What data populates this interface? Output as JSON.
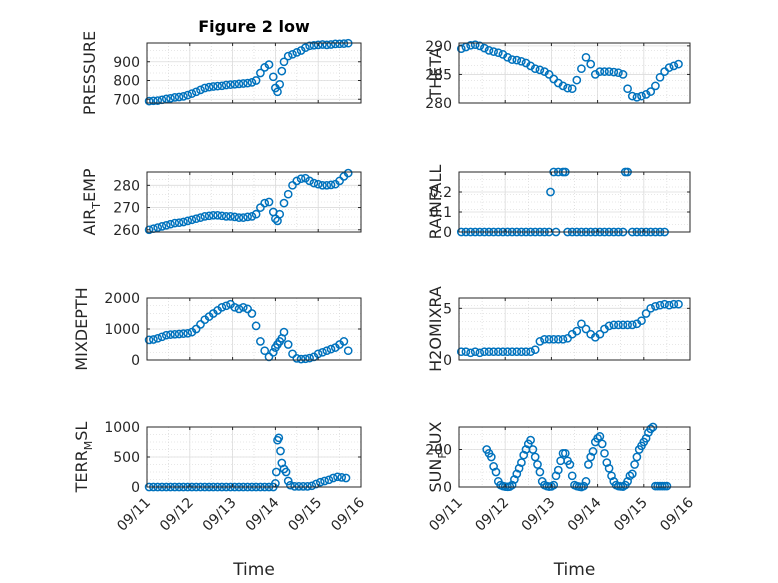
{
  "marker_color": "#0072BD",
  "chart_data": [
    {
      "type": "scatter",
      "title": "Figure 2 low",
      "ylabel": "PRESSURE",
      "ylabel_sub": "",
      "xlim": [
        0,
        5
      ],
      "ylim": [
        680,
        1000
      ],
      "yticks": [
        700,
        800,
        900
      ],
      "ytick_labels": [
        "700",
        "800",
        "900"
      ],
      "xticks": [
        0,
        1,
        2,
        3,
        4,
        5
      ],
      "xtick_labels": [],
      "grid": true,
      "series": [
        {
          "x": [
            0.05,
            0.15,
            0.25,
            0.35,
            0.45,
            0.55,
            0.65,
            0.75,
            0.85,
            0.95,
            1.05,
            1.15,
            1.25,
            1.35,
            1.45,
            1.55,
            1.65,
            1.75,
            1.85,
            1.95,
            2.05,
            2.15,
            2.25,
            2.35,
            2.45,
            2.55,
            2.65,
            2.75,
            2.85,
            2.95,
            3.0,
            3.05,
            3.1,
            3.15,
            3.2,
            3.3,
            3.4,
            3.5,
            3.6,
            3.7,
            3.8,
            3.9,
            4.0,
            4.1,
            4.2,
            4.3,
            4.4,
            4.5,
            4.6,
            4.7
          ],
          "y": [
            690,
            692,
            693,
            697,
            702,
            705,
            710,
            712,
            715,
            722,
            730,
            740,
            750,
            760,
            765,
            768,
            770,
            772,
            776,
            778,
            780,
            782,
            784,
            786,
            790,
            800,
            840,
            870,
            885,
            820,
            760,
            740,
            780,
            850,
            900,
            930,
            940,
            950,
            960,
            975,
            985,
            988,
            990,
            992,
            990,
            992,
            995,
            996,
            997,
            999
          ]
        }
      ]
    },
    {
      "type": "scatter",
      "title": "",
      "ylabel": "THETA",
      "ylabel_sub": "",
      "xlim": [
        0,
        5
      ],
      "ylim": [
        280,
        290.5
      ],
      "yticks": [
        280,
        285,
        290
      ],
      "ytick_labels": [
        "280",
        "285",
        "290"
      ],
      "xticks": [
        0,
        1,
        2,
        3,
        4,
        5
      ],
      "xtick_labels": [],
      "grid": true,
      "series": [
        {
          "x": [
            0.05,
            0.15,
            0.25,
            0.35,
            0.45,
            0.55,
            0.65,
            0.75,
            0.85,
            0.95,
            1.05,
            1.15,
            1.25,
            1.35,
            1.45,
            1.55,
            1.65,
            1.75,
            1.85,
            1.95,
            2.05,
            2.15,
            2.25,
            2.35,
            2.45,
            2.55,
            2.65,
            2.75,
            2.85,
            2.95,
            3.05,
            3.15,
            3.25,
            3.35,
            3.45,
            3.55,
            3.65,
            3.75,
            3.85,
            3.95,
            4.05,
            4.15,
            4.25,
            4.35,
            4.45,
            4.55,
            4.65,
            4.75
          ],
          "y": [
            289.5,
            289.8,
            290.1,
            290.2,
            290,
            289.6,
            289.2,
            289.0,
            288.8,
            288.5,
            288.0,
            287.6,
            287.5,
            287.3,
            287.0,
            286.5,
            286.0,
            285.8,
            285.5,
            285.0,
            284.2,
            283.5,
            283.0,
            282.6,
            282.5,
            284.0,
            286.0,
            288.0,
            286.8,
            285.0,
            285.5,
            285.5,
            285.5,
            285.4,
            285.3,
            285.0,
            282.5,
            281.2,
            281.0,
            281.2,
            281.5,
            282.0,
            283.0,
            284.5,
            285.5,
            286.2,
            286.5,
            286.8
          ]
        }
      ]
    },
    {
      "type": "scatter",
      "title": "",
      "ylabel": "AIR",
      "ylabel_sub": "T",
      "ylabel_rest": "EMP",
      "xlim": [
        0,
        5
      ],
      "ylim": [
        259,
        286
      ],
      "yticks": [
        260,
        270,
        280
      ],
      "ytick_labels": [
        "260",
        "270",
        "280"
      ],
      "xticks": [
        0,
        1,
        2,
        3,
        4,
        5
      ],
      "xtick_labels": [],
      "grid": true,
      "series": [
        {
          "x": [
            0.05,
            0.15,
            0.25,
            0.35,
            0.45,
            0.55,
            0.65,
            0.75,
            0.85,
            0.95,
            1.05,
            1.15,
            1.25,
            1.35,
            1.45,
            1.55,
            1.65,
            1.75,
            1.85,
            1.95,
            2.05,
            2.15,
            2.25,
            2.35,
            2.45,
            2.55,
            2.65,
            2.75,
            2.85,
            2.95,
            3.0,
            3.05,
            3.1,
            3.2,
            3.3,
            3.4,
            3.5,
            3.6,
            3.7,
            3.8,
            3.9,
            4.0,
            4.1,
            4.2,
            4.3,
            4.4,
            4.5,
            4.6,
            4.7
          ],
          "y": [
            260,
            260.5,
            261,
            261.5,
            262,
            262.5,
            263,
            263.2,
            263.5,
            264,
            264.5,
            265,
            265.5,
            266,
            266.3,
            266.5,
            266.5,
            266.3,
            266,
            266,
            265.8,
            265.5,
            265.5,
            265.8,
            266,
            267,
            270,
            272,
            272.5,
            268,
            265,
            264,
            267,
            272,
            276,
            280,
            282,
            283,
            283.2,
            282,
            281,
            280.5,
            280,
            280,
            280.2,
            280.5,
            282,
            284,
            285.5
          ]
        }
      ]
    },
    {
      "type": "scatter",
      "title": "",
      "ylabel": "RAINFALL",
      "ylabel_sub": "",
      "xlim": [
        0,
        5
      ],
      "ylim": [
        0,
        0.3
      ],
      "yticks": [
        0,
        0.1,
        0.2
      ],
      "ytick_labels": [
        "0",
        "0.1",
        "0.2"
      ],
      "xticks": [
        0,
        1,
        2,
        3,
        4,
        5
      ],
      "xtick_labels": [],
      "grid": true,
      "series": [
        {
          "x": [
            0.05,
            0.15,
            0.25,
            0.35,
            0.45,
            0.55,
            0.65,
            0.75,
            0.85,
            0.95,
            1.05,
            1.15,
            1.25,
            1.35,
            1.45,
            1.55,
            1.65,
            1.75,
            1.85,
            1.95,
            1.98,
            2.05,
            2.1,
            2.15,
            2.25,
            2.3,
            2.35,
            2.45,
            2.55,
            2.65,
            2.75,
            2.85,
            2.95,
            3.05,
            3.15,
            3.25,
            3.35,
            3.45,
            3.55,
            3.6,
            3.65,
            3.75,
            3.85,
            3.95,
            4.05,
            4.15,
            4.25,
            4.35,
            4.45
          ],
          "y": [
            0,
            0,
            0,
            0,
            0,
            0,
            0,
            0,
            0,
            0,
            0,
            0,
            0,
            0,
            0,
            0,
            0,
            0,
            0,
            0,
            0.2,
            0.3,
            0,
            0.3,
            0.3,
            0.3,
            0,
            0,
            0,
            0,
            0,
            0,
            0,
            0,
            0,
            0,
            0,
            0,
            0,
            0.3,
            0.3,
            0,
            0,
            0,
            0,
            0,
            0,
            0,
            0
          ]
        }
      ]
    },
    {
      "type": "scatter",
      "title": "",
      "ylabel": "MIXDEPTH",
      "ylabel_sub": "",
      "xlim": [
        0,
        5
      ],
      "ylim": [
        0,
        2000
      ],
      "yticks": [
        0,
        1000,
        2000
      ],
      "ytick_labels": [
        "0",
        "1000",
        "2000"
      ],
      "xticks": [
        0,
        1,
        2,
        3,
        4,
        5
      ],
      "xtick_labels": [],
      "grid": true,
      "series": [
        {
          "x": [
            0.05,
            0.15,
            0.25,
            0.35,
            0.45,
            0.55,
            0.65,
            0.75,
            0.85,
            0.95,
            1.05,
            1.15,
            1.25,
            1.35,
            1.45,
            1.55,
            1.65,
            1.75,
            1.85,
            1.95,
            2.05,
            2.15,
            2.25,
            2.35,
            2.45,
            2.55,
            2.65,
            2.75,
            2.85,
            2.95,
            3.0,
            3.05,
            3.1,
            3.15,
            3.2,
            3.3,
            3.4,
            3.5,
            3.6,
            3.7,
            3.8,
            3.9,
            4.0,
            4.1,
            4.2,
            4.3,
            4.4,
            4.5,
            4.6,
            4.7
          ],
          "y": [
            650,
            660,
            700,
            750,
            800,
            820,
            830,
            840,
            850,
            860,
            900,
            1000,
            1150,
            1300,
            1400,
            1500,
            1600,
            1700,
            1750,
            1800,
            1700,
            1650,
            1700,
            1650,
            1500,
            1100,
            600,
            300,
            100,
            250,
            400,
            500,
            600,
            700,
            900,
            500,
            200,
            50,
            30,
            40,
            60,
            100,
            200,
            250,
            300,
            350,
            400,
            500,
            600,
            300
          ]
        }
      ]
    },
    {
      "type": "scatter",
      "title": "",
      "ylabel": "H2OMIXRA",
      "ylabel_sub": "",
      "xlim": [
        0,
        5
      ],
      "ylim": [
        0,
        6
      ],
      "yticks": [
        0,
        5
      ],
      "ytick_labels": [
        "0",
        "5"
      ],
      "xticks": [
        0,
        1,
        2,
        3,
        4,
        5
      ],
      "xtick_labels": [],
      "grid": true,
      "series": [
        {
          "x": [
            0.05,
            0.15,
            0.25,
            0.35,
            0.45,
            0.55,
            0.65,
            0.75,
            0.85,
            0.95,
            1.05,
            1.15,
            1.25,
            1.35,
            1.45,
            1.55,
            1.65,
            1.75,
            1.85,
            1.95,
            2.05,
            2.15,
            2.25,
            2.35,
            2.45,
            2.55,
            2.65,
            2.75,
            2.85,
            2.95,
            3.05,
            3.15,
            3.25,
            3.35,
            3.45,
            3.55,
            3.65,
            3.75,
            3.85,
            3.95,
            4.05,
            4.15,
            4.25,
            4.35,
            4.45,
            4.55,
            4.65,
            4.75
          ],
          "y": [
            0.8,
            0.8,
            0.7,
            0.8,
            0.7,
            0.8,
            0.8,
            0.8,
            0.8,
            0.8,
            0.8,
            0.8,
            0.8,
            0.8,
            0.8,
            0.8,
            1.0,
            1.8,
            2.0,
            2.0,
            2.0,
            2.0,
            2.0,
            2.1,
            2.5,
            2.8,
            3.5,
            3.0,
            2.5,
            2.2,
            2.5,
            3.0,
            3.3,
            3.4,
            3.4,
            3.4,
            3.4,
            3.4,
            3.5,
            3.8,
            4.5,
            5.0,
            5.2,
            5.3,
            5.4,
            5.3,
            5.4,
            5.4
          ]
        }
      ]
    },
    {
      "type": "scatter",
      "title": "",
      "ylabel": "TERR",
      "ylabel_sub": "M",
      "ylabel_rest": "SL",
      "xlim": [
        0,
        5
      ],
      "ylim": [
        0,
        1000
      ],
      "yticks": [
        0,
        500,
        1000
      ],
      "ytick_labels": [
        "0",
        "500",
        "1000"
      ],
      "xticks": [
        0,
        1,
        2,
        3,
        4,
        5
      ],
      "xtick_labels": [
        "09/11",
        "09/12",
        "09/13",
        "09/14",
        "09/15",
        "09/16"
      ],
      "xlabel": "Time",
      "grid": true,
      "series": [
        {
          "x": [
            0.05,
            0.15,
            0.25,
            0.35,
            0.45,
            0.55,
            0.65,
            0.75,
            0.85,
            0.95,
            1.05,
            1.15,
            1.25,
            1.35,
            1.45,
            1.55,
            1.65,
            1.75,
            1.85,
            1.95,
            2.05,
            2.15,
            2.25,
            2.35,
            2.45,
            2.55,
            2.65,
            2.75,
            2.85,
            2.95,
            3.0,
            3.02,
            3.05,
            3.08,
            3.12,
            3.15,
            3.2,
            3.25,
            3.3,
            3.35,
            3.45,
            3.55,
            3.65,
            3.75,
            3.85,
            3.95,
            4.05,
            4.15,
            4.25,
            4.35,
            4.45,
            4.55,
            4.65
          ],
          "y": [
            0,
            0,
            0,
            0,
            0,
            0,
            0,
            0,
            0,
            0,
            0,
            0,
            0,
            0,
            0,
            0,
            0,
            0,
            0,
            0,
            0,
            0,
            0,
            0,
            0,
            0,
            0,
            0,
            0,
            0,
            60,
            250,
            780,
            820,
            600,
            400,
            300,
            250,
            100,
            30,
            10,
            10,
            10,
            10,
            20,
            50,
            80,
            100,
            120,
            150,
            170,
            160,
            150
          ]
        }
      ]
    },
    {
      "type": "scatter",
      "title": "",
      "ylabel": "SUN",
      "ylabel_sub": "F",
      "ylabel_rest": "LUX",
      "xlim": [
        0,
        5
      ],
      "ylim": [
        0,
        320
      ],
      "yticks": [
        0,
        200
      ],
      "ytick_labels": [
        "0",
        "200"
      ],
      "xticks": [
        0,
        1,
        2,
        3,
        4,
        5
      ],
      "xtick_labels": [
        "09/11",
        "09/12",
        "09/13",
        "09/14",
        "09/15",
        "09/16"
      ],
      "xlabel": "Time",
      "grid": true,
      "series": [
        {
          "x": [
            0.6,
            0.65,
            0.7,
            0.75,
            0.8,
            0.85,
            0.9,
            0.95,
            1.0,
            1.05,
            1.1,
            1.15,
            1.2,
            1.25,
            1.3,
            1.35,
            1.4,
            1.45,
            1.5,
            1.55,
            1.6,
            1.65,
            1.7,
            1.75,
            1.8,
            1.85,
            1.9,
            1.95,
            2.0,
            2.05,
            2.1,
            2.15,
            2.2,
            2.25,
            2.3,
            2.35,
            2.4,
            2.45,
            2.5,
            2.55,
            2.6,
            2.65,
            2.7,
            2.75,
            2.8,
            2.85,
            2.9,
            2.95,
            3.0,
            3.05,
            3.1,
            3.15,
            3.2,
            3.25,
            3.3,
            3.35,
            3.4,
            3.45,
            3.5,
            3.55,
            3.6,
            3.65,
            3.7,
            3.75,
            3.8,
            3.85,
            3.9,
            3.95,
            4.0,
            4.05,
            4.1,
            4.15,
            4.2,
            4.25,
            4.3,
            4.35,
            4.4,
            4.45,
            4.5
          ],
          "y": [
            200,
            180,
            160,
            110,
            80,
            30,
            10,
            5,
            2,
            1,
            2,
            10,
            40,
            70,
            100,
            130,
            170,
            200,
            230,
            250,
            200,
            160,
            120,
            80,
            30,
            10,
            5,
            2,
            3,
            10,
            60,
            90,
            140,
            180,
            180,
            140,
            120,
            60,
            10,
            5,
            2,
            0,
            5,
            30,
            120,
            160,
            190,
            240,
            260,
            270,
            230,
            180,
            130,
            100,
            60,
            30,
            10,
            5,
            3,
            2,
            10,
            30,
            60,
            70,
            120,
            160,
            200,
            220,
            240,
            260,
            290,
            310,
            320,
            5,
            5,
            5,
            5,
            5,
            5
          ]
        }
      ]
    }
  ]
}
